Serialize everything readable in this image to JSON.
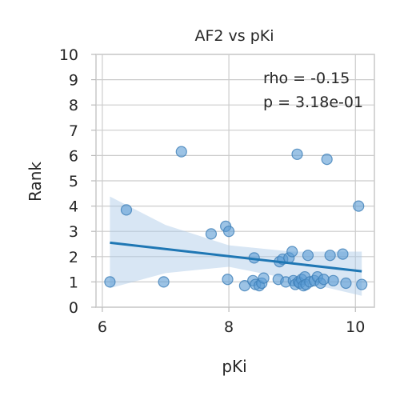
{
  "chart_data": {
    "type": "scatter",
    "title": "AF2 vs pKi",
    "xlabel": "pKi",
    "ylabel": "Rank",
    "xlim": [
      5.9,
      10.3
    ],
    "ylim": [
      0,
      10
    ],
    "xticks": [
      "6",
      "8",
      "10"
    ],
    "yticks": [
      "0",
      "1",
      "2",
      "3",
      "4",
      "5",
      "6",
      "7",
      "8",
      "9",
      "10"
    ],
    "grid": true,
    "annotations": [
      "rho = -0.15",
      "p = 3.18e-01"
    ],
    "colors": {
      "points": "#5a9bd4",
      "line": "#1f77b4",
      "band": "#a9c8e6"
    },
    "points": [
      {
        "x": 6.12,
        "y": 1.0
      },
      {
        "x": 6.38,
        "y": 3.85
      },
      {
        "x": 6.97,
        "y": 1.0
      },
      {
        "x": 7.25,
        "y": 6.15
      },
      {
        "x": 7.72,
        "y": 2.9
      },
      {
        "x": 7.95,
        "y": 3.2
      },
      {
        "x": 8.0,
        "y": 3.0
      },
      {
        "x": 7.98,
        "y": 1.1
      },
      {
        "x": 8.25,
        "y": 0.85
      },
      {
        "x": 8.38,
        "y": 1.05
      },
      {
        "x": 8.42,
        "y": 0.9
      },
      {
        "x": 8.48,
        "y": 0.85
      },
      {
        "x": 8.52,
        "y": 0.95
      },
      {
        "x": 8.55,
        "y": 1.15
      },
      {
        "x": 8.4,
        "y": 1.95
      },
      {
        "x": 8.78,
        "y": 1.1
      },
      {
        "x": 8.8,
        "y": 1.8
      },
      {
        "x": 8.85,
        "y": 1.9
      },
      {
        "x": 8.9,
        "y": 1.0
      },
      {
        "x": 8.95,
        "y": 1.95
      },
      {
        "x": 9.0,
        "y": 2.2
      },
      {
        "x": 9.02,
        "y": 1.05
      },
      {
        "x": 9.05,
        "y": 0.9
      },
      {
        "x": 9.08,
        "y": 6.05
      },
      {
        "x": 9.1,
        "y": 1.0
      },
      {
        "x": 9.12,
        "y": 0.95
      },
      {
        "x": 9.15,
        "y": 1.1
      },
      {
        "x": 9.18,
        "y": 0.85
      },
      {
        "x": 9.2,
        "y": 1.2
      },
      {
        "x": 9.22,
        "y": 0.9
      },
      {
        "x": 9.25,
        "y": 2.05
      },
      {
        "x": 9.28,
        "y": 1.0
      },
      {
        "x": 9.35,
        "y": 1.05
      },
      {
        "x": 9.4,
        "y": 1.2
      },
      {
        "x": 9.45,
        "y": 0.95
      },
      {
        "x": 9.5,
        "y": 1.1
      },
      {
        "x": 9.55,
        "y": 5.85
      },
      {
        "x": 9.6,
        "y": 2.05
      },
      {
        "x": 9.65,
        "y": 1.05
      },
      {
        "x": 9.8,
        "y": 2.1
      },
      {
        "x": 9.85,
        "y": 0.95
      },
      {
        "x": 10.05,
        "y": 4.0
      },
      {
        "x": 10.1,
        "y": 0.9
      }
    ],
    "regression": {
      "x": [
        6.12,
        10.1
      ],
      "y": [
        2.55,
        1.42
      ]
    },
    "ci_band": {
      "x": [
        6.12,
        7.0,
        8.0,
        9.0,
        10.1
      ],
      "upper": [
        4.38,
        3.25,
        2.45,
        2.2,
        2.2
      ],
      "lower": [
        0.75,
        1.35,
        1.6,
        1.1,
        0.45
      ]
    }
  }
}
